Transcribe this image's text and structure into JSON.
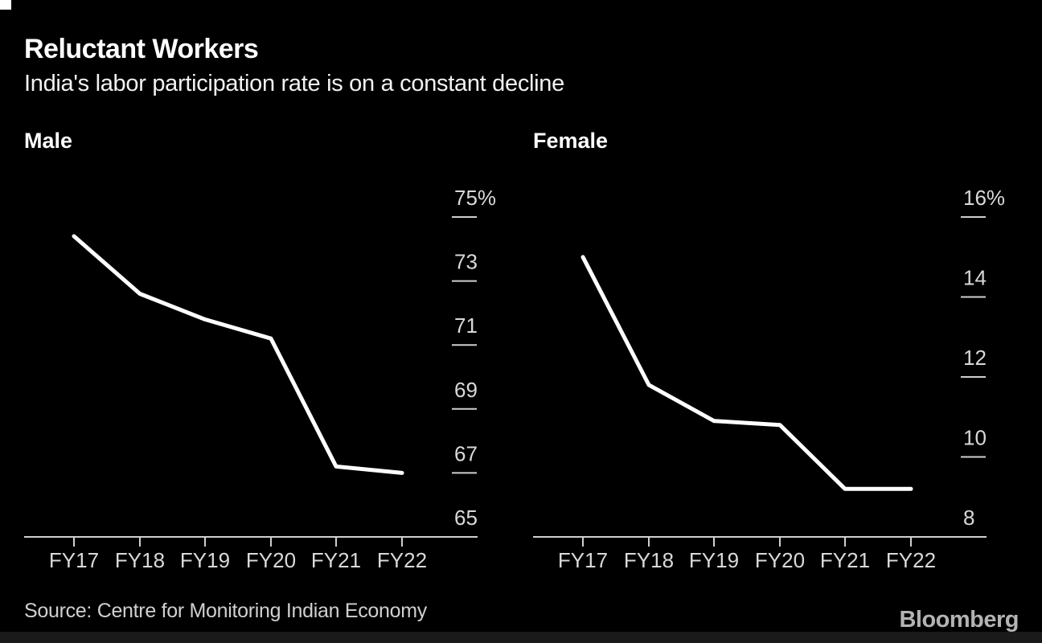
{
  "header": {
    "title": "Reluctant Workers",
    "subtitle": "India's labor participation rate is on a constant decline"
  },
  "source": "Source: Centre for Monitoring Indian Economy",
  "brand": "Bloomberg",
  "colors": {
    "background": "#000000",
    "line": "#ffffff",
    "axis": "#cfcfcf",
    "tick_label": "#d9d9d9",
    "source_text": "#d0d0d0",
    "brand_text": "#b3b3b3",
    "bottom_bar": "#1a1a1a"
  },
  "chart_data": [
    {
      "type": "line",
      "title": "Male",
      "categories": [
        "FY17",
        "FY18",
        "FY19",
        "FY20",
        "FY21",
        "FY22"
      ],
      "values": [
        74.4,
        72.6,
        71.8,
        71.2,
        67.2,
        67.0
      ],
      "unit": "%",
      "xlabel": "",
      "ylabel": "",
      "ylim": [
        65,
        75
      ],
      "yticks": [
        65,
        67,
        69,
        71,
        73,
        75
      ],
      "ytick_labels": [
        "65",
        "67",
        "69",
        "71",
        "73",
        "75%"
      ],
      "grid": "off",
      "legend_position": "none",
      "axis_side": "right"
    },
    {
      "type": "line",
      "title": "Female",
      "categories": [
        "FY17",
        "FY18",
        "FY19",
        "FY20",
        "FY21",
        "FY22"
      ],
      "values": [
        15.0,
        11.8,
        10.9,
        10.8,
        9.2,
        9.2
      ],
      "unit": "%",
      "xlabel": "",
      "ylabel": "",
      "ylim": [
        8,
        16
      ],
      "yticks": [
        8,
        10,
        12,
        14,
        16
      ],
      "ytick_labels": [
        "8",
        "10",
        "12",
        "14",
        "16%"
      ],
      "grid": "off",
      "legend_position": "none",
      "axis_side": "right"
    }
  ]
}
